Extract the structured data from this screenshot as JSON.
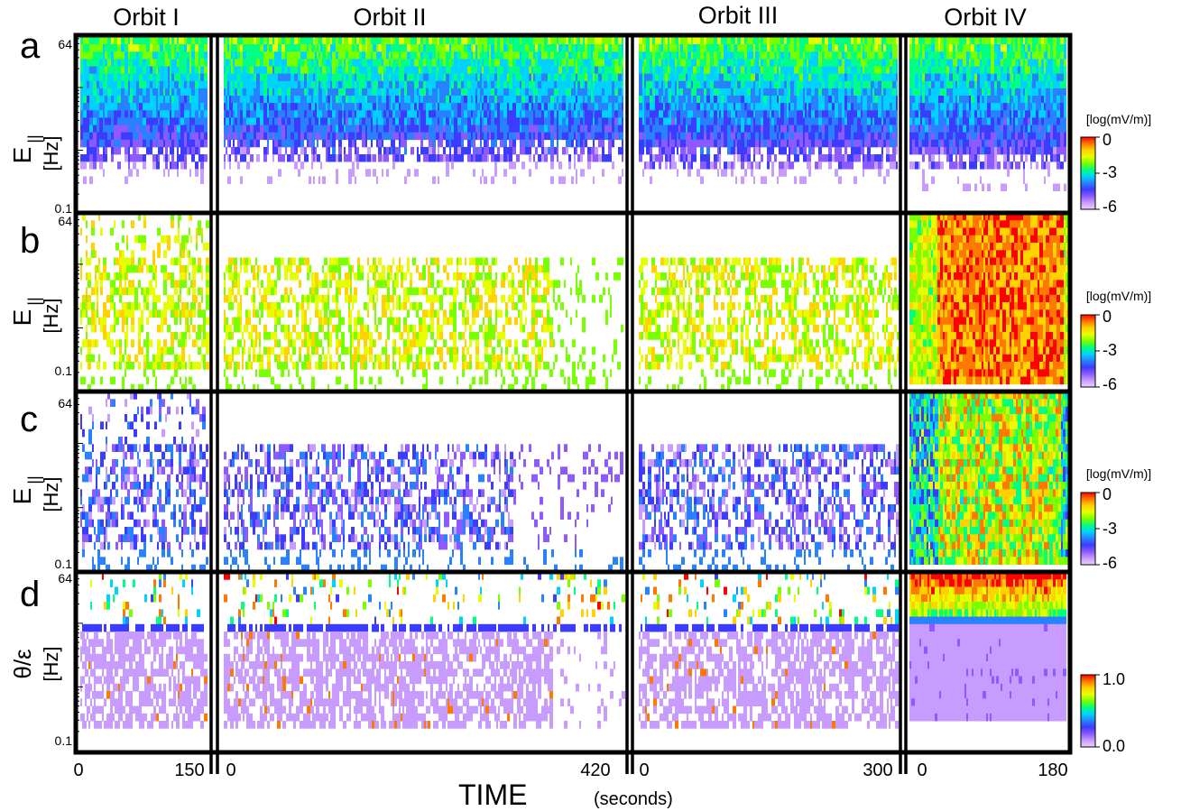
{
  "figure": {
    "orbit_titles": [
      "Orbit I",
      "Orbit II",
      "Orbit III",
      "Orbit IV"
    ],
    "panel_letters": [
      "a",
      "b",
      "c",
      "d"
    ],
    "xlabel": "TIME",
    "xlabel_unit": "(seconds)"
  },
  "chart_data": {
    "type": "heatmap",
    "x_unit": "seconds",
    "y_scale": "log",
    "y_unit": "Hz",
    "y_ticks": [
      "64",
      "0.1"
    ],
    "ylim_hz": [
      0.1,
      64
    ],
    "orbits": [
      {
        "name": "Orbit I",
        "xlim": [
          0,
          150
        ],
        "xtick_labels": [
          "0",
          "150"
        ]
      },
      {
        "name": "Orbit II",
        "xlim": [
          0,
          420
        ],
        "xtick_labels": [
          "0",
          "420"
        ]
      },
      {
        "name": "Orbit III",
        "xlim": [
          0,
          300
        ],
        "xtick_labels": [
          "0",
          "300"
        ]
      },
      {
        "name": "Orbit IV",
        "xlim": [
          0,
          180
        ],
        "xtick_labels": [
          "0",
          "180"
        ]
      }
    ],
    "panels": [
      {
        "letter": "a",
        "ylabel": "E",
        "ylabel_sub": "||",
        "ylabel_unit": "[Hz]",
        "colorbar": {
          "label": "[log(mV/m)]",
          "ticks": [
            "0",
            "-3",
            "-6"
          ],
          "range": [
            -6,
            0
          ]
        }
      },
      {
        "letter": "b",
        "ylabel": "E",
        "ylabel_sub": "||",
        "ylabel_unit": "[Hz]",
        "colorbar": {
          "label": "[log(mV/m)]",
          "ticks": [
            "0",
            "-3",
            "-6"
          ],
          "range": [
            -6,
            0
          ]
        }
      },
      {
        "letter": "c",
        "ylabel": "E",
        "ylabel_sub": "||",
        "ylabel_unit": "[Hz]",
        "colorbar": {
          "label": "[log(mV/m)]",
          "ticks": [
            "0",
            "-3",
            "-6"
          ],
          "range": [
            -6,
            0
          ]
        }
      },
      {
        "letter": "d",
        "ylabel": "θ/ε",
        "ylabel_sub": "",
        "ylabel_unit": "[Hz]",
        "colorbar": {
          "label": "",
          "ticks": [
            "1.0",
            "0.0"
          ],
          "range": [
            0,
            1
          ]
        }
      }
    ],
    "colormap": [
      "#ffffff",
      "#ebd2ff",
      "#c89bff",
      "#8c5aff",
      "#3c3cff",
      "#2882ff",
      "#00d2ff",
      "#00ff82",
      "#78ff00",
      "#e6ff00",
      "#ffd200",
      "#ff7800",
      "#ff0000"
    ]
  }
}
